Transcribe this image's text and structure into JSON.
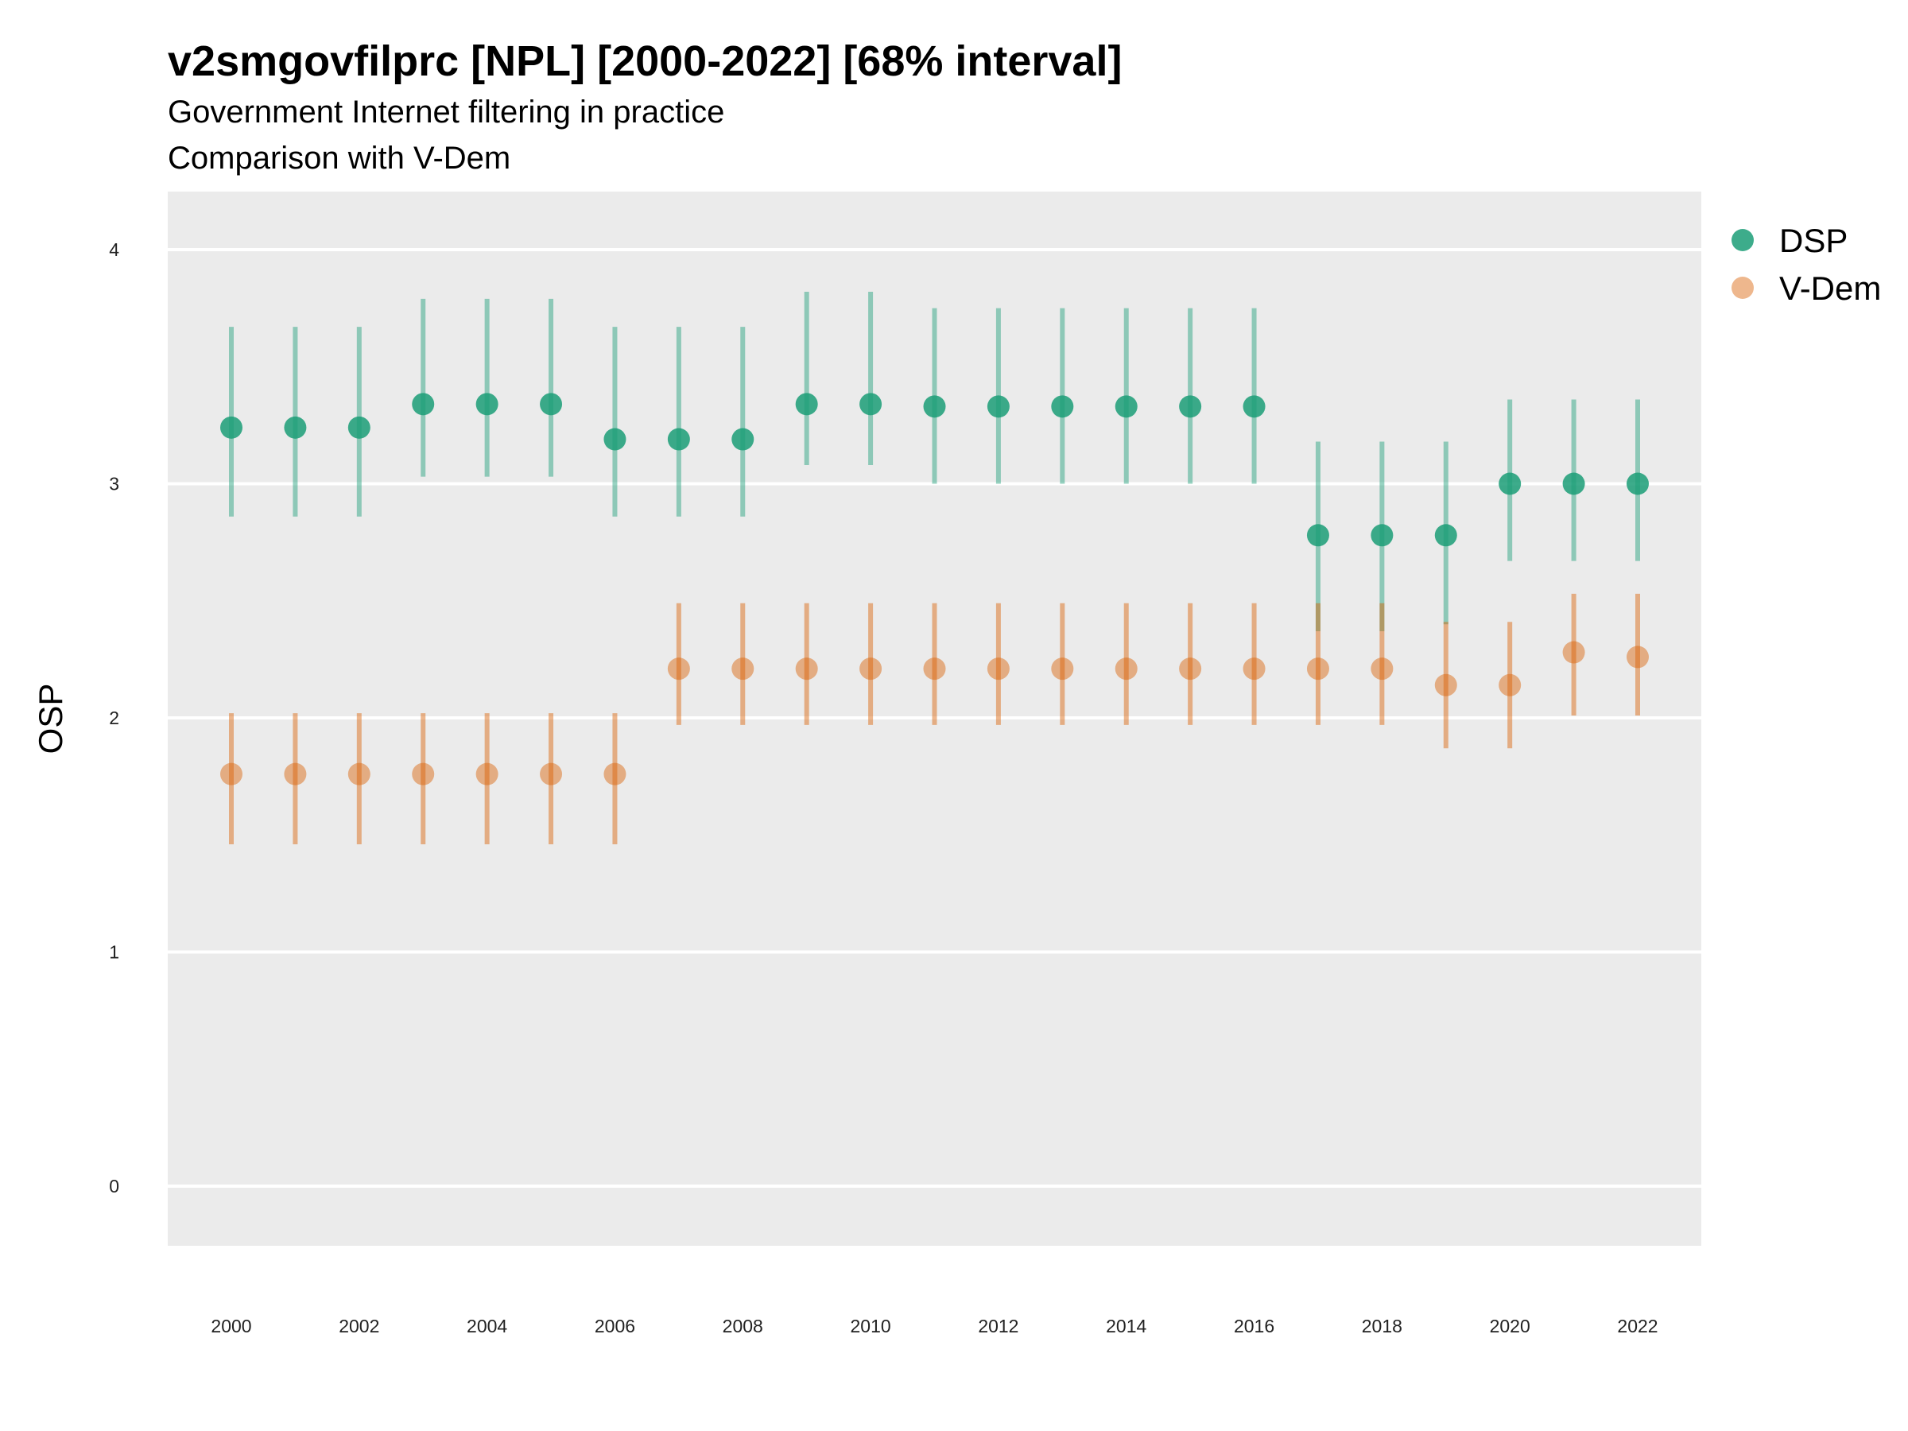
{
  "chart_data": {
    "type": "scatter",
    "title": "v2smgovfilprc [NPL] [2000-2022] [68% interval]",
    "subtitle": "Government Internet filtering in practice",
    "caption_line": "Comparison with V-Dem",
    "xlabel": "",
    "ylabel": "OSP",
    "ylim": [
      -0.25,
      4.25
    ],
    "xlim": [
      1999,
      2023
    ],
    "yticks": [
      0,
      1,
      2,
      3,
      4
    ],
    "xticks": [
      2000,
      2002,
      2004,
      2006,
      2008,
      2010,
      2012,
      2014,
      2016,
      2018,
      2020,
      2022
    ],
    "grid": true,
    "legend_position": "right-top",
    "x": [
      2000,
      2001,
      2002,
      2003,
      2004,
      2005,
      2006,
      2007,
      2008,
      2009,
      2010,
      2011,
      2012,
      2013,
      2014,
      2015,
      2016,
      2017,
      2018,
      2019,
      2020,
      2021,
      2022
    ],
    "series": [
      {
        "name": "DSP",
        "color": "#1b9e77",
        "values": [
          3.24,
          3.24,
          3.24,
          3.34,
          3.34,
          3.34,
          3.19,
          3.19,
          3.19,
          3.34,
          3.34,
          3.33,
          3.33,
          3.33,
          3.33,
          3.33,
          3.33,
          2.78,
          2.78,
          2.78,
          3.0,
          3.0,
          3.0
        ],
        "lower": [
          2.86,
          2.86,
          2.86,
          3.03,
          3.03,
          3.03,
          2.86,
          2.86,
          2.86,
          3.08,
          3.08,
          3.0,
          3.0,
          3.0,
          3.0,
          3.0,
          3.0,
          2.37,
          2.37,
          2.4,
          2.67,
          2.67,
          2.67
        ],
        "upper": [
          3.67,
          3.67,
          3.67,
          3.79,
          3.79,
          3.79,
          3.67,
          3.67,
          3.67,
          3.82,
          3.82,
          3.75,
          3.75,
          3.75,
          3.75,
          3.75,
          3.75,
          3.18,
          3.18,
          3.18,
          3.36,
          3.36,
          3.36
        ]
      },
      {
        "name": "V-Dem",
        "color": "#d95f02",
        "values": [
          1.76,
          1.76,
          1.76,
          1.76,
          1.76,
          1.76,
          1.76,
          2.21,
          2.21,
          2.21,
          2.21,
          2.21,
          2.21,
          2.21,
          2.21,
          2.21,
          2.21,
          2.21,
          2.21,
          2.14,
          2.14,
          2.28,
          2.26
        ],
        "lower": [
          1.46,
          1.46,
          1.46,
          1.46,
          1.46,
          1.46,
          1.46,
          1.97,
          1.97,
          1.97,
          1.97,
          1.97,
          1.97,
          1.97,
          1.97,
          1.97,
          1.97,
          1.97,
          1.97,
          1.87,
          1.87,
          2.01,
          2.01
        ],
        "upper": [
          2.02,
          2.02,
          2.02,
          2.02,
          2.02,
          2.02,
          2.02,
          2.49,
          2.49,
          2.49,
          2.49,
          2.49,
          2.49,
          2.49,
          2.49,
          2.49,
          2.49,
          2.49,
          2.49,
          2.41,
          2.41,
          2.53,
          2.53
        ]
      }
    ]
  }
}
